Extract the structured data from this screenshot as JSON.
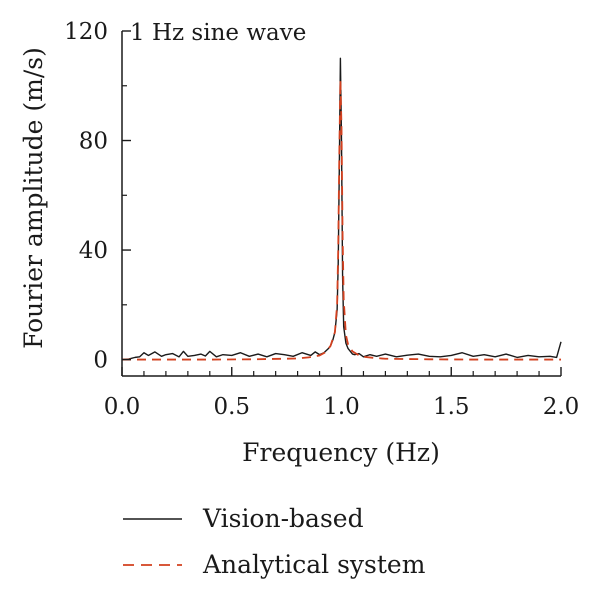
{
  "chart_data": {
    "type": "line",
    "title": "",
    "annotation": "1 Hz sine wave",
    "xlabel": "Frequency (Hz)",
    "ylabel": "Fourier amplitude (m/s)",
    "xlim": [
      0.0,
      2.0
    ],
    "ylim": [
      -6,
      120
    ],
    "x_ticks": [
      "0.0",
      "0.5",
      "1.0",
      "1.5",
      "2.0"
    ],
    "y_ticks": [
      "0",
      "40",
      "80",
      "120"
    ],
    "grid": false,
    "legend_position": "bottom",
    "series": [
      {
        "name": "Vision-based",
        "color": "#1a1a1a",
        "style": "solid",
        "x": [
          0.0,
          0.03,
          0.06,
          0.08,
          0.1,
          0.12,
          0.15,
          0.18,
          0.2,
          0.23,
          0.26,
          0.28,
          0.3,
          0.33,
          0.36,
          0.38,
          0.4,
          0.43,
          0.46,
          0.5,
          0.54,
          0.58,
          0.62,
          0.66,
          0.7,
          0.74,
          0.78,
          0.82,
          0.86,
          0.88,
          0.9,
          0.92,
          0.94,
          0.95,
          0.96,
          0.97,
          0.98,
          0.985,
          0.99,
          0.995,
          1.0,
          1.005,
          1.01,
          1.02,
          1.03,
          1.04,
          1.05,
          1.06,
          1.08,
          1.1,
          1.13,
          1.16,
          1.2,
          1.25,
          1.3,
          1.35,
          1.4,
          1.45,
          1.5,
          1.55,
          1.6,
          1.65,
          1.7,
          1.75,
          1.8,
          1.85,
          1.9,
          1.95,
          1.98,
          2.0
        ],
        "y": [
          0.0,
          0.2,
          0.8,
          1.0,
          2.5,
          1.5,
          2.8,
          1.2,
          1.8,
          2.2,
          1.0,
          3.0,
          1.2,
          1.5,
          2.0,
          1.3,
          3.0,
          1.0,
          1.8,
          1.5,
          2.5,
          1.2,
          2.0,
          1.0,
          2.2,
          1.8,
          1.2,
          2.5,
          1.5,
          2.8,
          1.8,
          2.5,
          4.0,
          5.0,
          7.0,
          10.0,
          18.0,
          35.0,
          70.0,
          110.0,
          80.0,
          30.0,
          12.0,
          6.0,
          4.0,
          3.0,
          2.0,
          1.8,
          2.2,
          1.0,
          1.8,
          1.2,
          2.0,
          1.0,
          1.6,
          2.0,
          1.2,
          1.0,
          1.5,
          2.5,
          1.2,
          1.8,
          1.0,
          2.0,
          0.8,
          1.5,
          1.0,
          1.2,
          0.8,
          6.5
        ]
      },
      {
        "name": "Analytical system",
        "color": "#d2401f",
        "style": "dashed",
        "x": [
          0.0,
          0.2,
          0.4,
          0.6,
          0.8,
          0.85,
          0.9,
          0.93,
          0.95,
          0.97,
          0.98,
          0.985,
          0.99,
          0.995,
          1.0,
          1.005,
          1.01,
          1.02,
          1.03,
          1.05,
          1.08,
          1.1,
          1.15,
          1.2,
          1.4,
          1.6,
          1.8,
          2.0
        ],
        "y": [
          0.0,
          0.0,
          0.0,
          0.1,
          0.4,
          0.8,
          1.5,
          2.8,
          5.0,
          10.0,
          20.0,
          40.0,
          75.0,
          102.0,
          85.0,
          45.0,
          22.0,
          9.0,
          5.5,
          3.0,
          1.5,
          1.0,
          0.6,
          0.3,
          0.1,
          0.0,
          0.0,
          0.0
        ]
      }
    ]
  }
}
